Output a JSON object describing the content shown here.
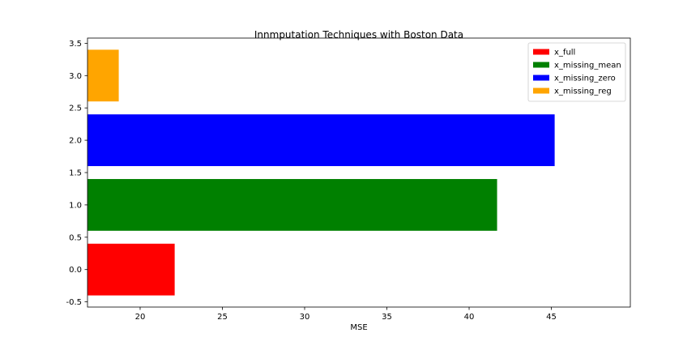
{
  "chart_data": {
    "type": "bar",
    "orientation": "horizontal",
    "title": "Innmputation Techniques with Boston Data",
    "xlabel": "MSE",
    "ylabel": "",
    "xlim": [
      16.8,
      49.8
    ],
    "ylim": [
      -0.58,
      3.58
    ],
    "xticks": [
      20,
      25,
      30,
      35,
      40,
      45
    ],
    "yticks": [
      -0.5,
      0.0,
      0.5,
      1.0,
      1.5,
      2.0,
      2.5,
      3.0,
      3.5
    ],
    "bar_height": 0.8,
    "grid": false,
    "legend_position": "upper right",
    "series": [
      {
        "name": "x_full",
        "y": 0,
        "value": 22.1,
        "color": "#ff0000"
      },
      {
        "name": "x_missing_mean",
        "y": 1,
        "value": 41.7,
        "color": "#008000"
      },
      {
        "name": "x_missing_zero",
        "y": 2,
        "value": 45.2,
        "color": "#0000ff"
      },
      {
        "name": "x_missing_reg",
        "y": 3,
        "value": 18.7,
        "color": "#ffa500"
      }
    ]
  }
}
